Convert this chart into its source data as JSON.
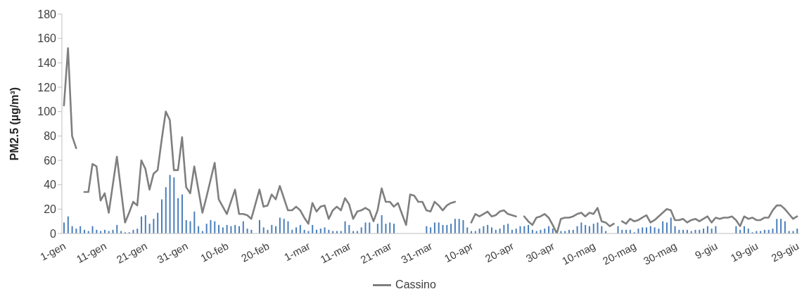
{
  "chart_data": {
    "type": "bar",
    "ylabel": "PM2.5 (µg/m³)",
    "legend": "bottom",
    "ylim": [
      0,
      180
    ],
    "yticks": [
      0,
      20,
      40,
      60,
      80,
      100,
      120,
      140,
      160,
      180
    ],
    "categories": [
      "1-gen",
      null,
      null,
      null,
      null,
      null,
      null,
      null,
      null,
      null,
      "11-gen",
      null,
      null,
      null,
      null,
      null,
      null,
      null,
      null,
      null,
      "21-gen",
      null,
      null,
      null,
      null,
      null,
      null,
      null,
      null,
      null,
      "31-gen",
      null,
      null,
      null,
      null,
      null,
      null,
      null,
      null,
      null,
      "10-feb",
      null,
      null,
      null,
      null,
      null,
      null,
      null,
      null,
      null,
      "20-feb",
      null,
      null,
      null,
      null,
      null,
      null,
      null,
      null,
      null,
      "1-mar",
      null,
      null,
      null,
      null,
      null,
      null,
      null,
      null,
      null,
      "11-mar",
      null,
      null,
      null,
      null,
      null,
      null,
      null,
      null,
      null,
      "21-mar",
      null,
      null,
      null,
      null,
      null,
      null,
      null,
      null,
      null,
      "31-mar",
      null,
      null,
      null,
      null,
      null,
      null,
      null,
      null,
      null,
      "10-apr",
      null,
      null,
      null,
      null,
      null,
      null,
      null,
      null,
      null,
      "20-apr",
      null,
      null,
      null,
      null,
      null,
      null,
      null,
      null,
      null,
      "30-apr",
      null,
      null,
      null,
      null,
      null,
      null,
      null,
      null,
      null,
      "10-mag",
      null,
      null,
      null,
      null,
      null,
      null,
      null,
      null,
      null,
      "20-mag",
      null,
      null,
      null,
      null,
      null,
      null,
      null,
      null,
      null,
      "30-mag",
      null,
      null,
      null,
      null,
      null,
      null,
      null,
      null,
      null,
      "9-giu",
      null,
      null,
      null,
      null,
      null,
      null,
      null,
      null,
      null,
      "19-giu",
      null,
      null,
      null,
      null,
      null,
      null,
      null,
      null,
      null,
      "29-giu"
    ],
    "series": [
      {
        "color": "#4a7ebb",
        "values": [
          9,
          14,
          6,
          4,
          6,
          3,
          2,
          6,
          3,
          2,
          3,
          2,
          3,
          7,
          2,
          1,
          1,
          3,
          4,
          14,
          15,
          8,
          12,
          17,
          28,
          38,
          48,
          46,
          29,
          32,
          11,
          10,
          18,
          6,
          2,
          8,
          11,
          10,
          7,
          5,
          7,
          6,
          7,
          6,
          10,
          4,
          3,
          null,
          11,
          5,
          3,
          7,
          6,
          13,
          12,
          10,
          3,
          5,
          7,
          3,
          2,
          7,
          3,
          4,
          5,
          3,
          2,
          2,
          2,
          10,
          7,
          2,
          2,
          5,
          9,
          9,
          0,
          8,
          15,
          8,
          9,
          8,
          null,
          null,
          null,
          null,
          null,
          null,
          null,
          6,
          5,
          9,
          9,
          7,
          7,
          8,
          12,
          12,
          11,
          5,
          2,
          2,
          4,
          6,
          7,
          5,
          3,
          4,
          7,
          8,
          3,
          4,
          6,
          6,
          7,
          3,
          2,
          3,
          4,
          6,
          4,
          null,
          2,
          2,
          3,
          3,
          6,
          9,
          7,
          6,
          8,
          9,
          6,
          2,
          null,
          null,
          6,
          3,
          3,
          3,
          1,
          4,
          5,
          5,
          6,
          5,
          4,
          10,
          9,
          13,
          6,
          3,
          3,
          3,
          2,
          3,
          3,
          4,
          6,
          4,
          6,
          null,
          null,
          null,
          null,
          6,
          3,
          6,
          4,
          1,
          2,
          2,
          3,
          3,
          4,
          12,
          12,
          10,
          2,
          2,
          4
        ]
      },
      {
        "type": "line",
        "name": "Cassino",
        "color": "#7f7f7f",
        "values": [
          105,
          152,
          80,
          70,
          null,
          34,
          34,
          57,
          55,
          27,
          33,
          17,
          40,
          63,
          36,
          9,
          17,
          26,
          23,
          60,
          53,
          36,
          49,
          52,
          77,
          100,
          93,
          52,
          52,
          79,
          38,
          33,
          55,
          36,
          17,
          30,
          44,
          58,
          28,
          22,
          16,
          26,
          36,
          16,
          16,
          15,
          12,
          24,
          36,
          22,
          23,
          32,
          28,
          39,
          29,
          19,
          19,
          22,
          19,
          13,
          8,
          25,
          18,
          22,
          23,
          12,
          19,
          22,
          19,
          29,
          24,
          12,
          18,
          19,
          21,
          19,
          10,
          19,
          37,
          26,
          26,
          22,
          25,
          16,
          7,
          32,
          31,
          26,
          26,
          19,
          18,
          26,
          23,
          19,
          23,
          25,
          26,
          null,
          null,
          null,
          9,
          16,
          14,
          16,
          18,
          14,
          15,
          18,
          19,
          16,
          15,
          14,
          null,
          14,
          10,
          7,
          13,
          14,
          16,
          13,
          7,
          0,
          12,
          13,
          13,
          14,
          16,
          17,
          14,
          17,
          16,
          21,
          10,
          9,
          6,
          8,
          null,
          10,
          8,
          12,
          10,
          11,
          13,
          15,
          9,
          11,
          14,
          17,
          20,
          19,
          11,
          11,
          12,
          9,
          11,
          12,
          10,
          12,
          14,
          9,
          13,
          12,
          13,
          13,
          14,
          11,
          6,
          14,
          12,
          13,
          11,
          11,
          13,
          13,
          19,
          23,
          23,
          20,
          16,
          12,
          14
        ]
      }
    ]
  }
}
